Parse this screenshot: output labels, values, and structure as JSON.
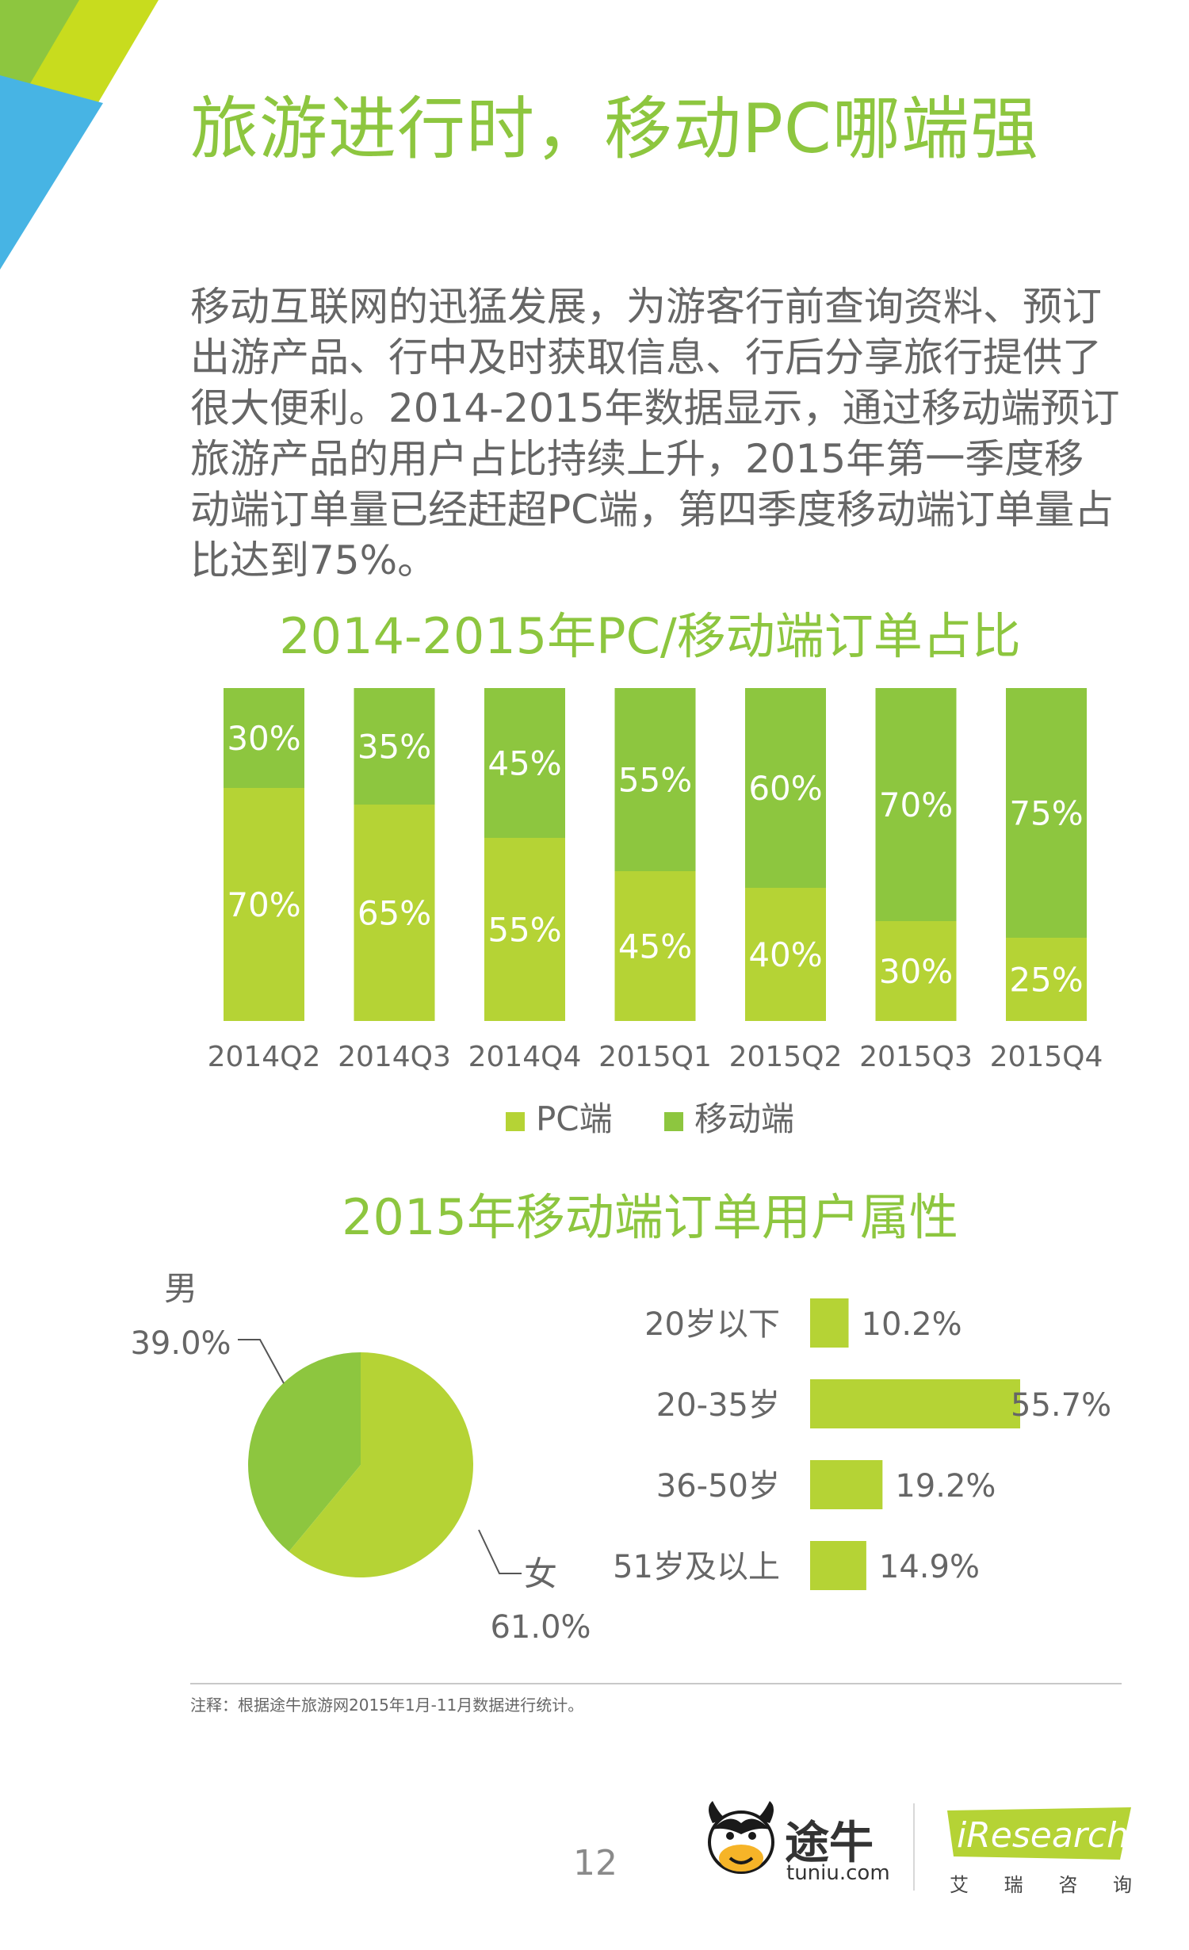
{
  "header": {
    "title": "旅游进行时，移动PC哪端强"
  },
  "intro": "移动互联网的迅猛发展，为游客行前查询资料、预订出游产品、行中及时获取信息、行后分享旅行提供了很大便利。2014-2015年数据显示，通过移动端预订旅游产品的用户占比持续上升，2015年第一季度移动端订单量已经赶超PC端，第四季度移动端订单量占比达到75%。",
  "colors": {
    "pc": "#b5d335",
    "mobile": "#8dc63f",
    "title": "#8dc63f",
    "text": "#666666"
  },
  "chart_data": [
    {
      "type": "bar",
      "stacked": true,
      "title": "2014-2015年PC/移动端订单占比",
      "categories": [
        "2014Q2",
        "2014Q3",
        "2014Q4",
        "2015Q1",
        "2015Q2",
        "2015Q3",
        "2015Q4"
      ],
      "series": [
        {
          "name": "PC端",
          "values": [
            70,
            65,
            55,
            45,
            40,
            30,
            25
          ],
          "labels": [
            "70%",
            "65%",
            "55%",
            "45%",
            "40%",
            "30%",
            "25%"
          ]
        },
        {
          "name": "移动端",
          "values": [
            30,
            35,
            45,
            55,
            60,
            70,
            75
          ],
          "labels": [
            "30%",
            "35%",
            "45%",
            "55%",
            "60%",
            "70%",
            "75%"
          ]
        }
      ],
      "ylim": [
        0,
        100
      ],
      "legend": "bottom",
      "grid": false
    },
    {
      "type": "pie",
      "title": "2015年移动端订单用户属性",
      "labels": [
        "男",
        "女"
      ],
      "values": [
        39.0,
        61.0
      ],
      "value_labels": [
        "39.0%",
        "61.0%"
      ]
    },
    {
      "type": "bar",
      "orientation": "horizontal",
      "categories": [
        "20岁以下",
        "20-35岁",
        "36-50岁",
        "51岁及以上"
      ],
      "values": [
        10.2,
        55.7,
        19.2,
        14.9
      ],
      "value_labels": [
        "10.2%",
        "55.7%",
        "19.2%",
        "14.9%"
      ],
      "xlim": [
        0,
        55.7
      ]
    }
  ],
  "footer": {
    "note": "注释：根据途牛旅游网2015年1月-11月数据进行统计。",
    "page": "12",
    "tuniu_name": "途牛",
    "tuniu_domain": "tuniu.com",
    "iresearch_name": "iResearch",
    "iresearch_chars": [
      "艾",
      "瑞",
      "咨",
      "询"
    ]
  }
}
